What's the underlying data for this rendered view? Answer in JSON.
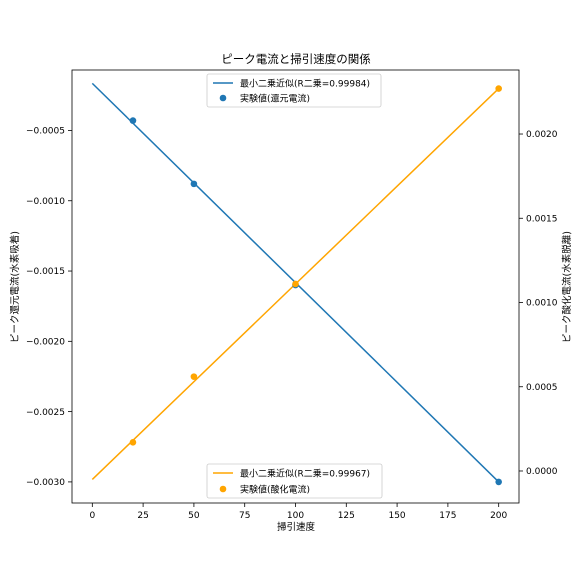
{
  "chart_data": {
    "type": "line",
    "title": "ピーク電流と掃引速度の関係",
    "xlabel": "掃引速度",
    "ylabel_left": "ピーク還元電流(水素吸着)",
    "ylabel_right": "ピーク酸化電流(水素脱離)",
    "xlim": [
      -10,
      210
    ],
    "ylim_left": [
      -0.00315,
      -7e-05
    ],
    "ylim_right": [
      -0.00019,
      0.00238
    ],
    "x_ticks": [
      0,
      25,
      50,
      75,
      100,
      125,
      150,
      175,
      200
    ],
    "y_ticks_left": [
      -0.0005,
      -0.001,
      -0.0015,
      -0.002,
      -0.0025,
      -0.003
    ],
    "y_ticks_left_labels": [
      "−0.0005",
      "−0.0010",
      "−0.0015",
      "−0.0020",
      "−0.0025",
      "−0.0030"
    ],
    "y_ticks_right": [
      0.0,
      0.0005,
      0.001,
      0.0015,
      0.002
    ],
    "y_ticks_right_labels": [
      "0.0000",
      "0.0005",
      "0.0010",
      "0.0015",
      "0.0020"
    ],
    "grid": false,
    "series": [
      {
        "name": "最小二乗近似(R二乗=0.99984)",
        "axis": "left",
        "kind": "line",
        "color": "#1f77b4",
        "x": [
          0,
          200
        ],
        "y": [
          -0.000165,
          -0.003
        ]
      },
      {
        "name": "実験値(還元電流)",
        "axis": "left",
        "kind": "scatter",
        "color": "#1f77b4",
        "x": [
          20,
          50,
          100,
          200
        ],
        "y": [
          -0.00043,
          -0.00088,
          -0.0016,
          -0.003
        ]
      },
      {
        "name": "最小二乗近似(R二乗=0.99967)",
        "axis": "right",
        "kind": "line",
        "color": "#ffa500",
        "x": [
          0,
          200
        ],
        "y": [
          -5e-05,
          0.00227
        ]
      },
      {
        "name": "実験値(酸化電流)",
        "axis": "right",
        "kind": "scatter",
        "color": "#ffa500",
        "x": [
          20,
          50,
          100,
          200
        ],
        "y": [
          0.00017,
          0.00056,
          0.00111,
          0.00227
        ]
      }
    ],
    "legend_top": [
      "最小二乗近似(R二乗=0.99984)",
      "実験値(還元電流)"
    ],
    "legend_bottom": [
      "最小二乗近似(R二乗=0.99967)",
      "実験値(酸化電流)"
    ],
    "legend_top_placement": "upper center",
    "legend_bottom_placement": "lower center"
  }
}
